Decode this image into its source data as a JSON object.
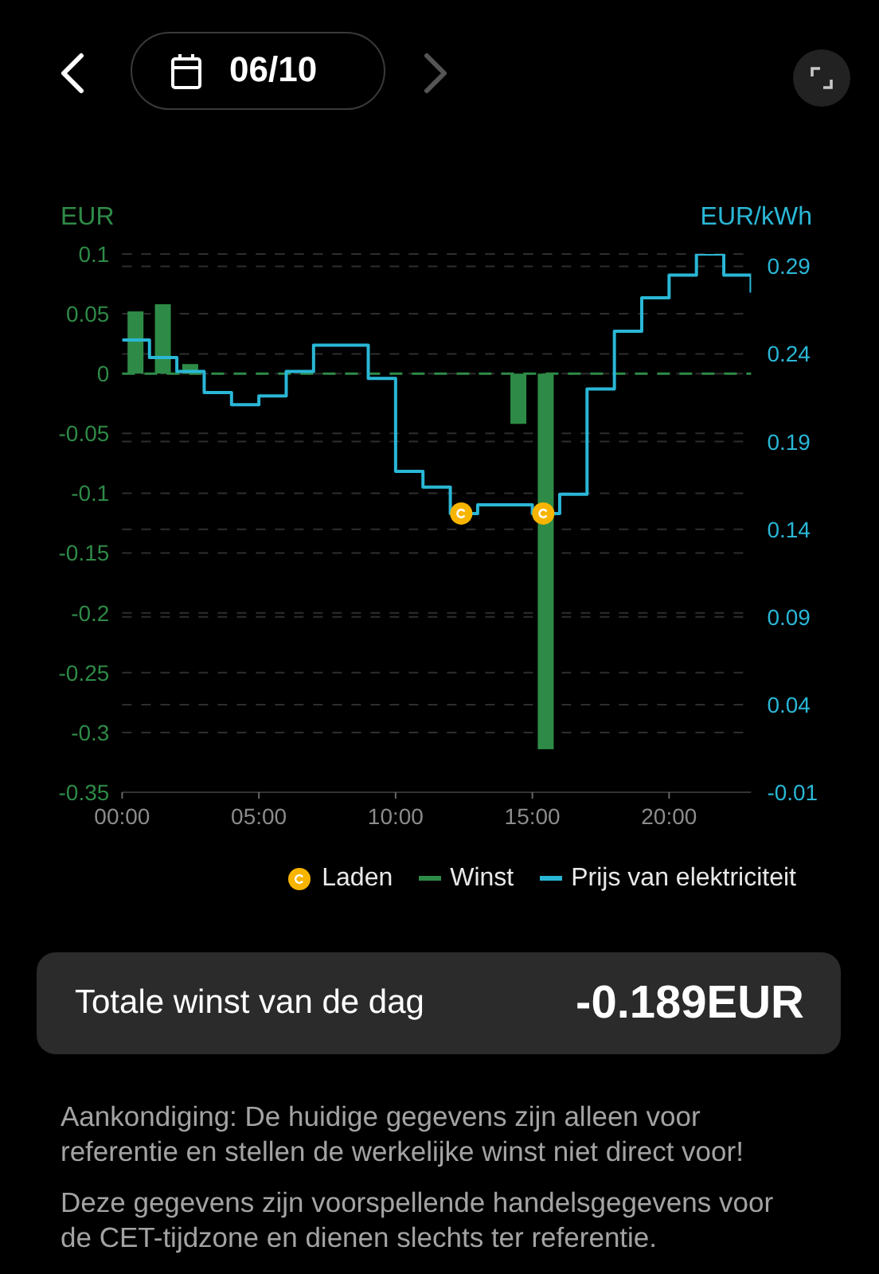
{
  "chart_data": {
    "type": "bar",
    "title": "06/10",
    "ylabel": "EUR",
    "y2label": "EUR/kWh",
    "series": [
      {
        "name": "Laden",
        "type": "scatter",
        "axis": "y2",
        "marker": "circle",
        "color": "#f7b500",
        "x": [
          12.4,
          15.4
        ],
        "values": [
          0.149,
          0.149
        ]
      },
      {
        "name": "Winst",
        "color": "#2e8b47",
        "x": [
          0.5,
          1.5,
          2.5,
          14.5,
          15.5
        ],
        "values": [
          0.052,
          0.058,
          0.008,
          -0.042,
          -0.314
        ]
      },
      {
        "name": "Prijs van elektriciteit",
        "type": "step",
        "axis": "y2",
        "color": "#2ab7d6",
        "x": [
          0,
          1,
          2,
          3,
          4,
          5,
          6,
          7,
          8,
          9,
          10,
          11,
          12,
          13,
          14,
          15,
          16,
          17,
          18,
          19,
          20,
          21,
          22,
          23
        ],
        "values": [
          0.248,
          0.238,
          0.23,
          0.218,
          0.211,
          0.216,
          0.23,
          0.245,
          0.245,
          0.226,
          0.173,
          0.164,
          0.149,
          0.154,
          0.154,
          0.149,
          0.16,
          0.22,
          0.253,
          0.272,
          0.285,
          0.297,
          0.285,
          0.275
        ]
      }
    ],
    "xlim": [
      0,
      23
    ],
    "xticks": [
      {
        "value": 0,
        "label": "00:00"
      },
      {
        "value": 5,
        "label": "05:00"
      },
      {
        "value": 10,
        "label": "10:00"
      },
      {
        "value": 15,
        "label": "15:00"
      },
      {
        "value": 20,
        "label": "20:00"
      }
    ],
    "ylim": [
      -0.35,
      0.1
    ],
    "yticks": [
      0.1,
      0.05,
      0,
      -0.05,
      -0.1,
      -0.15,
      -0.2,
      -0.25,
      -0.3,
      -0.35
    ],
    "y2lim": [
      -0.01,
      0.297
    ],
    "y2ticks": [
      -0.01,
      0.04,
      0.09,
      0.14,
      0.19,
      0.24,
      0.29
    ],
    "ref_lines": [
      {
        "axis": "y",
        "value": 0,
        "color": "#2e8b47",
        "line_style": "dashed"
      }
    ],
    "grid": "y",
    "legend": "bottom",
    "line_style": "solid",
    "annotations": [
      "Totale winst van de dag",
      "-0.189EUR",
      "Aankondiging: De huidige gegevens zijn alleen voor referentie en stellen de werkelijke winst niet direct voor!",
      "Deze gegevens zijn voorspellende handelsgegevens voor de CET-tijdzone en dienen slechts ter referentie."
    ]
  }
}
